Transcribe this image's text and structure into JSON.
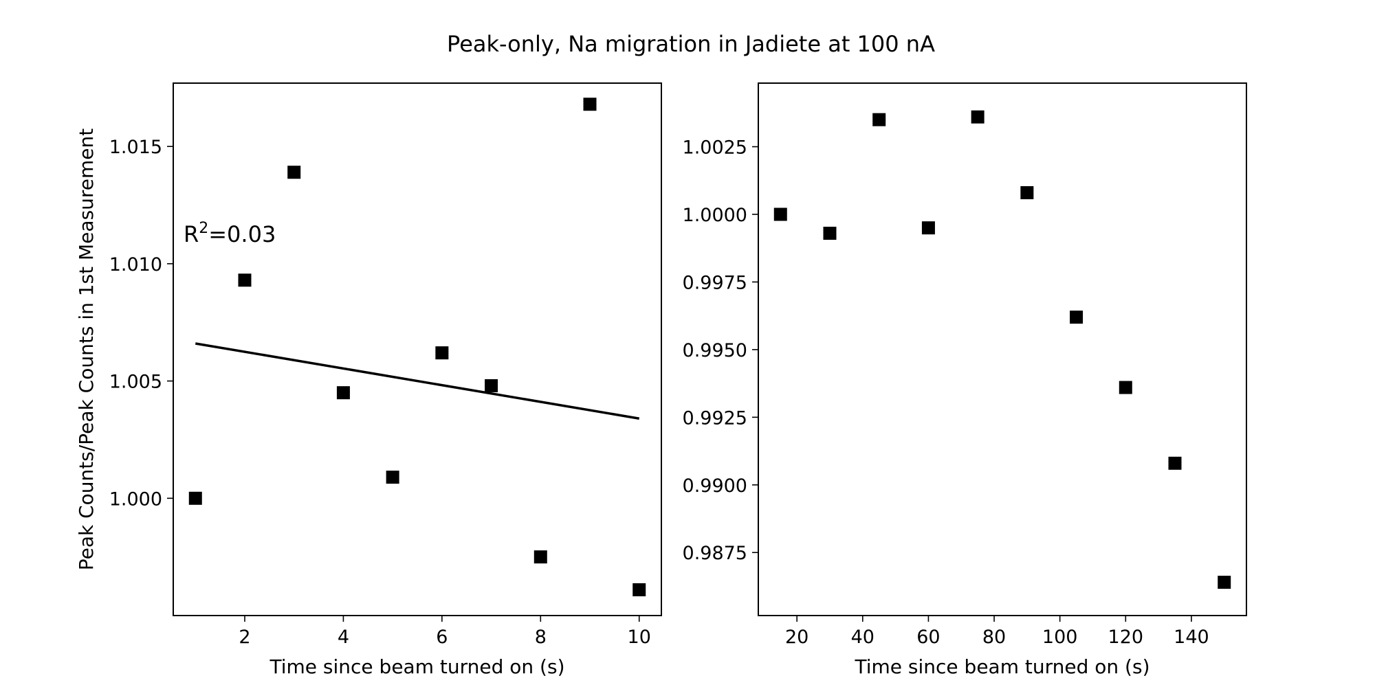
{
  "figure": {
    "title": "Peak-only, Na migration in Jadiete at 100 nA"
  },
  "chart_data": [
    {
      "type": "scatter",
      "title": "",
      "xlabel": "Time since beam turned on (s)",
      "ylabel": "Peak Counts/Peak Counts in 1st Measurement",
      "xlim": [
        0.55,
        10.45
      ],
      "ylim": [
        0.995,
        1.0177
      ],
      "xticks": [
        2,
        4,
        6,
        8,
        10
      ],
      "xtick_labels": [
        "2",
        "4",
        "6",
        "8",
        "10"
      ],
      "yticks": [
        1.0,
        1.005,
        1.01,
        1.015
      ],
      "ytick_labels": [
        "1.000",
        "1.005",
        "1.010",
        "1.015"
      ],
      "grid": false,
      "marker_color": "#000000",
      "series": [
        {
          "x": [
            1,
            2,
            3,
            4,
            5,
            6,
            7,
            8,
            9,
            10
          ],
          "y": [
            1.0,
            1.0093,
            1.0139,
            1.0045,
            1.0009,
            1.0062,
            1.0048,
            0.9975,
            1.0168,
            0.9961
          ]
        }
      ],
      "fit_line": {
        "x": [
          1,
          10
        ],
        "y": [
          1.0066,
          1.0034
        ]
      },
      "annotation": {
        "base": "R",
        "sup": "2",
        "rest": "=0.03"
      }
    },
    {
      "type": "scatter",
      "title": "",
      "xlabel": "Time since beam turned on (s)",
      "ylabel": "",
      "xlim": [
        8.25,
        156.75
      ],
      "ylim": [
        0.98517,
        1.00485
      ],
      "xticks": [
        20,
        40,
        60,
        80,
        100,
        120,
        140
      ],
      "xtick_labels": [
        "20",
        "40",
        "60",
        "80",
        "100",
        "120",
        "140"
      ],
      "yticks": [
        0.9875,
        0.99,
        0.9925,
        0.995,
        0.9975,
        1.0,
        1.0025
      ],
      "ytick_labels": [
        "0.9875",
        "0.9900",
        "0.9925",
        "0.9950",
        "0.9975",
        "1.0000",
        "1.0025"
      ],
      "grid": false,
      "marker_color": "#000000",
      "series": [
        {
          "x": [
            15,
            30,
            45,
            60,
            75,
            90,
            105,
            120,
            135,
            150
          ],
          "y": [
            1.0,
            0.9993,
            1.0035,
            0.9995,
            1.0036,
            1.0008,
            0.9962,
            0.9936,
            0.9908,
            0.9864
          ]
        }
      ]
    }
  ]
}
